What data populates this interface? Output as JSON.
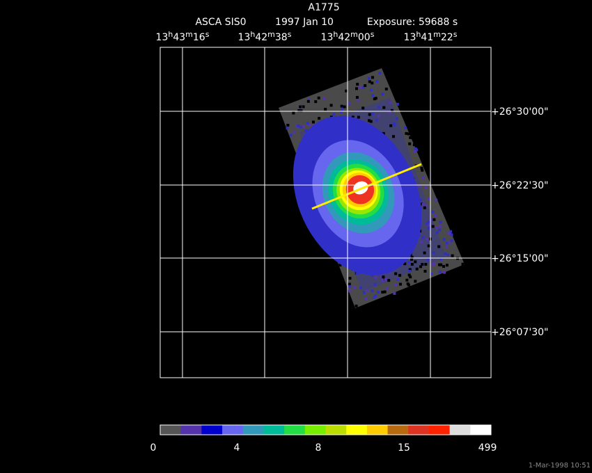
{
  "header": {
    "object": "A1775",
    "instrument": "ASCA SIS0",
    "date": "1997 Jan 10",
    "exposure": "Exposure: 59688 s"
  },
  "ra_labels": [
    [
      "13",
      "h",
      "43",
      "m",
      "16",
      "s"
    ],
    [
      "13",
      "h",
      "42",
      "m",
      "38",
      "s"
    ],
    [
      "13",
      "h",
      "42",
      "m",
      "00",
      "s"
    ],
    [
      "13",
      "h",
      "41",
      "m",
      "22",
      "s"
    ]
  ],
  "dec_labels": [
    "+26°30'00\"",
    "+26°22'30\"",
    "+26°15'00\"",
    "+26°07'30\""
  ],
  "colorbar_labels": [
    "0",
    "4",
    "8",
    "15",
    "499"
  ],
  "timestamp": "1-Mar-1998 10:51"
}
